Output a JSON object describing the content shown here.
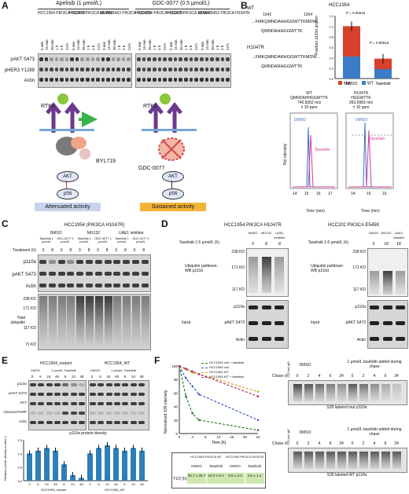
{
  "panel_labels": [
    "A",
    "B",
    "C",
    "D",
    "E",
    "F"
  ],
  "panelA": {
    "treatment1": "Apelisib (1 μmol/L)",
    "treatment2": "GDC-0077 (0.5 μmol/L)",
    "cell_lines": [
      "HCC1954 PIK3CA H1047R",
      "HCC202 PIK3CA E545K",
      "MDAMB453 PIK3CA H1047R"
    ],
    "timepoints": [
      "0 min",
      "15 min",
      "30 min",
      "1 h",
      "4 h",
      "24 h"
    ],
    "rows": [
      "pAKT S473",
      "pHER3 Y1289",
      "Actin"
    ],
    "rtk": "RTKs",
    "drug1": "BYL719",
    "drug2": "GDC-0077",
    "akt": "AKT",
    "ps6": "pS6",
    "outcome1": "Attenuated activity",
    "outcome2": "Sustained activity",
    "outcome1_color": "#c9d3ee",
    "outcome2_color": "#f3b43a"
  },
  "panelB": {
    "wt_label": "WT",
    "mut_label": "H1047R",
    "pos1": "1042",
    "pos2": "1054",
    "seq_wt": "...FMKQMNDAHHGGWTTKMDW...",
    "seq_wt_frag": "QMNDAHHGGWTTK",
    "seq_mut": "...FMKQMNDARHGGWTTKMDW...",
    "seq_mut_frag": "QMNDARHGGWTTK",
    "chart_title": "HCC1954",
    "ylabel": "Fraction p110α protein",
    "pvalue1": "P = 0.00016",
    "pvalue2": "P = 0.00016",
    "legend": [
      "Mut",
      "WT"
    ],
    "mut_color": "#d7402b",
    "wt_color": "#3b7dc4",
    "ms_wt_title": "WT",
    "ms_wt_seq": "QMNDAHHGGWTTK",
    "ms_wt_mz": "749.8262 m/z",
    "ms_wt_ppm": "± 10 ppm",
    "ms_mut_title": "H1047R",
    "ms_mut_seq": "HGGWTTK",
    "ms_mut_mz": "393.6983 m/z",
    "ms_mut_ppm": "± 10 ppm",
    "ms_ylabel": "Rel intensity",
    "ms_xlabel": "Time (min)",
    "ms_dmso": "DMSO",
    "ms_taselisib": "Taselisib",
    "ms_ticks_wt": [
      "14",
      "15",
      "16",
      "17"
    ],
    "ms_ticks_mut": [
      "14",
      "15",
      "16"
    ]
  },
  "panelC": {
    "title": "HCC1954 (PIK3CA H1047R)",
    "groups": [
      "DMSO",
      "MG132",
      "UAE1 inhibitor"
    ],
    "sub": [
      "Taselisib 1 μmol/L",
      "GDC-0077 1 μmol/L"
    ],
    "treatment": "Treatment (h)",
    "times": [
      "0",
      "8",
      "0",
      "8",
      "0",
      "8",
      "0",
      "8",
      "0",
      "8",
      "0",
      "8"
    ],
    "rows": [
      "p110α",
      "pAKT S473",
      "Actin"
    ],
    "mw": [
      "238 KD",
      "171 KD",
      "117 KD",
      "71 KD"
    ],
    "ub_label": "Total ubiquitin"
  },
  "panelD": {
    "title1": "HCC1954 PIK3CA H1047R",
    "title2": "HCC202 PIK3CA E545K",
    "groups": [
      "DMSO",
      "MG132",
      "UAE1 inhibitor"
    ],
    "tas": "Taselisib 1.6 μmol/L (h)",
    "times1": [
      "0",
      "8",
      "8"
    ],
    "times2": [
      "0",
      "18",
      "18"
    ],
    "mw": [
      "238 KD",
      "171 KD",
      "117 KD"
    ],
    "pulldown": "Ubiquitin pulldown: WB p110α",
    "input": "Input",
    "rows": [
      "p110α",
      "pAKT S473",
      "Actin"
    ]
  },
  "panelE": {
    "line1": "HCC1954_mutant",
    "line2": "HCC1954_WT",
    "dmso": "DMSO",
    "tas": "1 μmol/L Taselisib",
    "times": [
      "0",
      "6",
      "24",
      "48",
      "6",
      "24",
      "48"
    ],
    "rows": [
      "p110α",
      "pAKT S473",
      "AKT",
      "Cleaved PARP",
      "Actin"
    ],
    "density_title": "p110α protein density",
    "ylabel": "Relative p110α density to time 0",
    "xgroup1": "HCC1954_mutant",
    "xgroup2": "HCC1954_WT",
    "bar_color": "#2d7fb8"
  },
  "panelF": {
    "legend": [
      "HCC1954 mut + taselisib",
      "HCC1954 mut",
      "HCC1954 WT",
      "HCC1954 WT + taselisib"
    ],
    "legend_colors": [
      "#2a7a2a",
      "#3a5fc4",
      "#d9a21b",
      "#b0306b"
    ],
    "ylabel": "Normalized S35 intensity",
    "xlabel": "Time [h]",
    "xticks": [
      "0",
      "4",
      "8",
      "12",
      "16",
      "20",
      "24"
    ],
    "yticks": [
      "0",
      "20",
      "40",
      "60",
      "80",
      "100"
    ],
    "table_head1": "HCC1954 PIK3CA WT",
    "table_head2": "HCC1954 PIK3CA H1047R",
    "table_cols": [
      "DMSO",
      "Taselisib",
      "DMSO",
      "Taselisib"
    ],
    "table_row_label": "T1/2 (h)",
    "table_vals": [
      "26.7 ± 26.7",
      "24.0 ± 8.2",
      "9.6 ± 3.3",
      "4.0 ± 1.4"
    ],
    "table_color": "#cfe8b0",
    "chase_label": "Chase (h)",
    "cond_dmso": "DMSO",
    "cond_tas": "1 μmol/L taselisib added during chase",
    "chase_times": [
      "0",
      "2",
      "4",
      "6",
      "24",
      "0",
      "2",
      "4",
      "6",
      "24"
    ],
    "ctrl": "Cont IgG",
    "blot1": "S35 labeled mut p110α",
    "blot2": "S35 labeled WT p110α"
  },
  "chart_data": [
    {
      "type": "bar",
      "title": "HCC1954",
      "categories": [
        "DMSO",
        "Taselisib"
      ],
      "series": [
        {
          "name": "WT",
          "values": [
            0.42,
            0.18
          ]
        },
        {
          "name": "Mut",
          "values": [
            0.58,
            0.2
          ]
        }
      ],
      "ylabel": "Fraction p110α protein",
      "ylim": [
        0,
        1.2
      ],
      "annotations": [
        "P = 0.00016",
        "P = 0.00016"
      ]
    },
    {
      "type": "bar",
      "title": "p110α protein density",
      "categories": [
        "0",
        "6",
        "24",
        "48",
        "6",
        "24",
        "48",
        "0",
        "6",
        "24",
        "48",
        "6",
        "24",
        "48"
      ],
      "values": [
        1.0,
        1.1,
        1.2,
        1.1,
        0.6,
        0.2,
        0.1,
        1.0,
        1.2,
        1.3,
        1.2,
        1.1,
        1.2,
        1.1
      ],
      "ylabel": "Relative p110α density to time 0",
      "ylim": [
        0,
        1.5
      ]
    },
    {
      "type": "line",
      "x": [
        0,
        2,
        4,
        6,
        24
      ],
      "series": [
        {
          "name": "HCC1954 mut + taselisib",
          "values": [
            100,
            55,
            30,
            20,
            5
          ]
        },
        {
          "name": "HCC1954 mut",
          "values": [
            100,
            82,
            70,
            58,
            20
          ]
        },
        {
          "name": "HCC1954 WT",
          "values": [
            100,
            95,
            90,
            88,
            62
          ]
        },
        {
          "name": "HCC1954 WT + taselisib",
          "values": [
            100,
            96,
            92,
            88,
            55
          ]
        }
      ],
      "xlabel": "Time [h]",
      "ylabel": "Normalized S35 intensity",
      "xlim": [
        0,
        24
      ],
      "ylim": [
        0,
        100
      ]
    }
  ]
}
